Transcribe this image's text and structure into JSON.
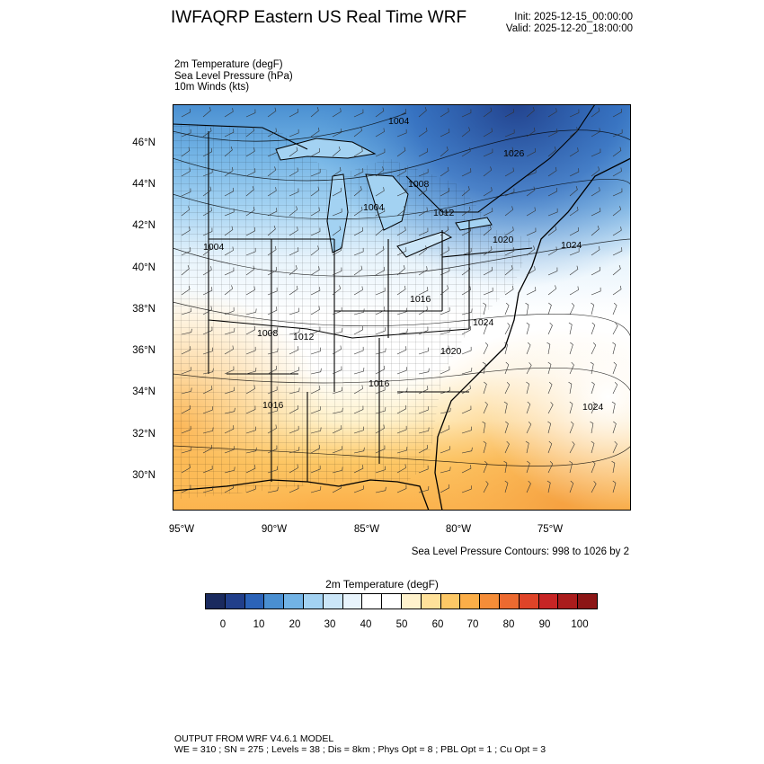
{
  "header": {
    "title": "IWFAQRP Eastern US Real Time WRF",
    "init": "Init: 2025-12-15_00:00:00",
    "valid": "Valid: 2025-12-20_18:00:00"
  },
  "variables": [
    "2m Temperature   (degF)",
    "Sea Level Pressure   (hPa)",
    "10m Winds   (kts)"
  ],
  "map": {
    "lat_labels": [
      "46°N",
      "44°N",
      "42°N",
      "40°N",
      "38°N",
      "36°N",
      "34°N",
      "32°N",
      "30°N"
    ],
    "lon_labels": [
      "95°W",
      "90°W",
      "85°W",
      "80°W",
      "75°W"
    ],
    "isobar_labels": [
      "1004",
      "1026",
      "1008",
      "1004",
      "1012",
      "1020",
      "1024",
      "1004",
      "1016",
      "1024",
      "1008",
      "1012",
      "1020",
      "1016",
      "1016",
      "1024"
    ]
  },
  "contour_note": "Sea Level Pressure Contours: 998 to 1026 by 2",
  "colorbar": {
    "title": "2m Temperature  (degF)",
    "ticks": [
      "0",
      "10",
      "20",
      "30",
      "40",
      "50",
      "60",
      "70",
      "80",
      "90",
      "100"
    ],
    "colors": [
      "#1a2a5e",
      "#213f8a",
      "#2b63b8",
      "#4a8fd1",
      "#72b3e5",
      "#a3d2f2",
      "#cbe6f8",
      "#e8f4fc",
      "#ffffff",
      "#ffffff",
      "#fff2cc",
      "#ffe19a",
      "#fdc866",
      "#fbae48",
      "#f58d38",
      "#ec6a30",
      "#df4428",
      "#c72525",
      "#aa1c1c",
      "#8c1616"
    ]
  },
  "footer": {
    "line1": "OUTPUT FROM WRF V4.6.1 MODEL",
    "line2": "WE = 310 ; SN = 275 ; Levels = 38 ; Dis = 8km ; Phys Opt = 8 ; PBL Opt = 1 ; Cu Opt = 3"
  }
}
